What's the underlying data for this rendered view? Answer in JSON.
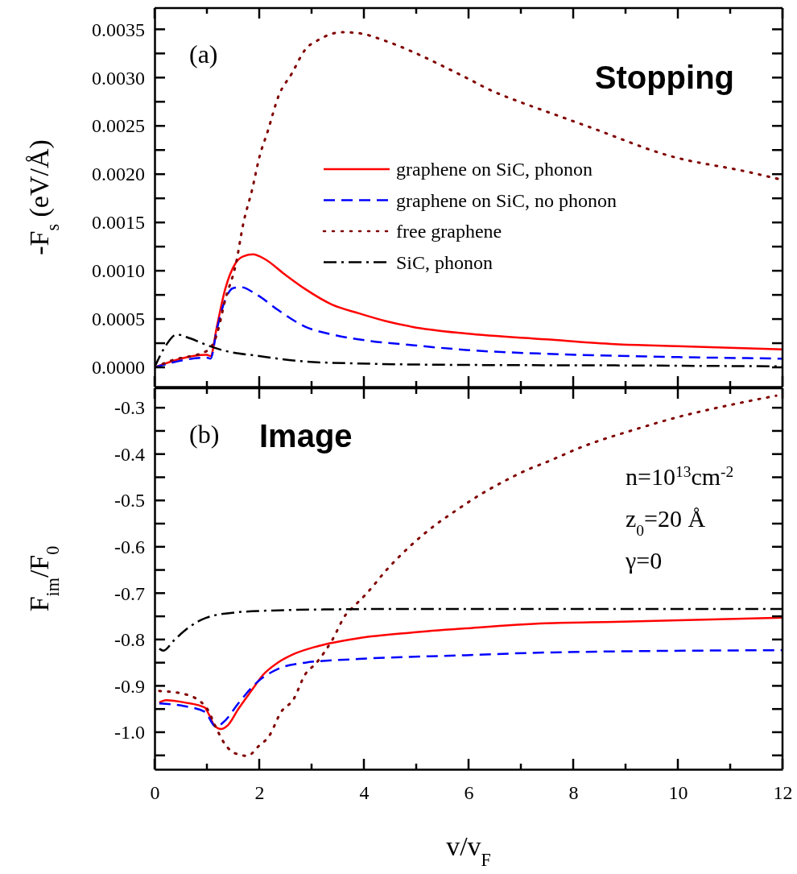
{
  "chart_data": [
    {
      "type": "line",
      "title": "Stopping",
      "ylabel": "-F$_{s}$ (eV/Å)",
      "annotations": [
        "(a)"
      ],
      "legend": "right",
      "tick_labels": "y",
      "xlim": [
        0,
        12
      ],
      "xticks": [
        0,
        {
          "value": 1,
          "label": null
        },
        2,
        {
          "value": 3,
          "label": null
        },
        4,
        {
          "value": 5,
          "label": null
        },
        6,
        {
          "value": 7,
          "label": null
        },
        8,
        {
          "value": 9,
          "label": null
        },
        10,
        {
          "value": 11,
          "label": null
        },
        12
      ],
      "ylim": [
        -0.0002,
        0.00372
      ],
      "yticks": [
        {
          "value": 0,
          "label": "0.0000"
        },
        {
          "value": 0.00025,
          "label": null
        },
        {
          "value": 0.0005,
          "label": "0.0005"
        },
        {
          "value": 0.00075,
          "label": null
        },
        {
          "value": 0.001,
          "label": "0.0010"
        },
        {
          "value": 0.00125,
          "label": null
        },
        {
          "value": 0.0015,
          "label": "0.0015"
        },
        {
          "value": 0.00175,
          "label": null
        },
        {
          "value": 0.002,
          "label": "0.0020"
        },
        {
          "value": 0.00225,
          "label": null
        },
        {
          "value": 0.0025,
          "label": "0.0025"
        },
        {
          "value": 0.00275,
          "label": null
        },
        {
          "value": 0.003,
          "label": "0.0030"
        },
        {
          "value": 0.00325,
          "label": null
        },
        {
          "value": 0.0035,
          "label": "0.0035"
        }
      ],
      "series": [
        {
          "name": "graphene on SiC, phonon",
          "color": "#ff0000",
          "line_style": "solid",
          "x": [
            0,
            1,
            1.07,
            1.19,
            1.35,
            1.55,
            1.7,
            1.88,
            2.11,
            2.47,
            2.88,
            3.39,
            3.9,
            4.41,
            4.92,
            5.95,
            7.48,
            8.8,
            10,
            12
          ],
          "values": [
            0,
            0.00013,
            0.000116,
            0.00042,
            0.00081,
            0.00108,
            0.00115,
            0.00117,
            0.00112,
            0.00097,
            0.00081,
            0.00065,
            0.00056,
            0.00048,
            0.00042,
            0.00035,
            0.00029,
            0.00024,
            0.00022,
            0.000185
          ]
        },
        {
          "name": "graphene on SiC, no phonon",
          "color": "#0000ff",
          "line_style": "dashed",
          "x": [
            0,
            1,
            1.07,
            1.19,
            1.35,
            1.5,
            1.65,
            1.96,
            2.37,
            2.88,
            3.39,
            4.16,
            4.92,
            5.95,
            7.48,
            8.8,
            12
          ],
          "values": [
            0,
            0.0001,
            9e-05,
            0.00039,
            0.0007,
            0.00082,
            0.00083,
            0.00075,
            0.00059,
            0.00042,
            0.00034,
            0.00027,
            0.00023,
            0.00018,
            0.00014,
            0.00012,
            9e-05
          ]
        },
        {
          "name": "free graphene",
          "color": "#800000",
          "line_style": "dotted",
          "x": [
            0,
            0.32,
            1,
            1.19,
            1.35,
            1.55,
            1.7,
            1.86,
            2.01,
            2.16,
            2.37,
            2.62,
            2.88,
            3.13,
            3.59,
            3.9,
            4.41,
            4.92,
            5.43,
            5.95,
            6.46,
            6.97,
            7.43,
            8.3,
            9.84,
            11.37,
            12
          ],
          "values": [
            0,
            7e-05,
            0.00017,
            0.00034,
            0.0007,
            0.00106,
            0.0015,
            0.00183,
            0.00219,
            0.00244,
            0.00281,
            0.00304,
            0.00329,
            0.00339,
            0.00347,
            0.00346,
            0.00338,
            0.00327,
            0.00314,
            0.003,
            0.00286,
            0.00275,
            0.00266,
            0.00249,
            0.00219,
            0.00202,
            0.00194
          ]
        },
        {
          "name": "SiC, phonon",
          "color": "#000000",
          "line_style": "dashdot",
          "x": [
            0,
            0.22,
            0.42,
            0.68,
            1,
            1.35,
            1.96,
            2.88,
            3.9,
            5.95,
            8.8,
            12
          ],
          "values": [
            0,
            0.00023,
            0.00034,
            0.0003,
            0.00023,
            0.00017,
            0.00012,
            6e-05,
            4e-05,
            2.5e-05,
            2e-05,
            1e-05
          ]
        }
      ]
    },
    {
      "type": "line",
      "title": "Image",
      "xlabel": "v/v$_{F}$",
      "ylabel": "F$_{im}$/F$_{0}$",
      "annotations": [
        "(b)",
        "n=10$^{13}$cm$^{-2}$",
        "z$_{0}$=20 Å",
        "γ=0"
      ],
      "xlim": [
        0,
        12
      ],
      "xticks": [
        0,
        {
          "value": 1,
          "label": null
        },
        2,
        {
          "value": 3,
          "label": null
        },
        4,
        {
          "value": 5,
          "label": null
        },
        6,
        {
          "value": 7,
          "label": null
        },
        8,
        {
          "value": 9,
          "label": null
        },
        10,
        {
          "value": 11,
          "label": null
        },
        12
      ],
      "ylim": [
        -1.08,
        -0.258
      ],
      "yticks": [
        {
          "value": -0.3,
          "label": "-0.3"
        },
        {
          "value": -0.35,
          "label": null
        },
        {
          "value": -0.4,
          "label": "-0.4"
        },
        {
          "value": -0.45,
          "label": null
        },
        {
          "value": -0.5,
          "label": "-0.5"
        },
        {
          "value": -0.55,
          "label": null
        },
        {
          "value": -0.6,
          "label": "-0.6"
        },
        {
          "value": -0.65,
          "label": null
        },
        {
          "value": -0.7,
          "label": "-0.7"
        },
        {
          "value": -0.75,
          "label": null
        },
        {
          "value": -0.8,
          "label": "-0.8"
        },
        {
          "value": -0.85,
          "label": null
        },
        {
          "value": -0.9,
          "label": "-0.9"
        },
        {
          "value": -0.95,
          "label": null
        },
        {
          "value": -1.0,
          "label": "-1.0"
        },
        {
          "value": -1.05,
          "label": null
        }
      ],
      "series": [
        {
          "color": "#ff0000",
          "line_style": "solid",
          "x": [
            0.09,
            0.22,
            0.58,
            0.96,
            1.04,
            1.14,
            1.27,
            1.4,
            1.6,
            1.86,
            2.06,
            2.37,
            2.67,
            3.13,
            3.9,
            4.92,
            5.95,
            7.48,
            8.8,
            12
          ],
          "values": [
            -0.936,
            -0.931,
            -0.936,
            -0.947,
            -0.962,
            -0.985,
            -0.993,
            -0.985,
            -0.95,
            -0.909,
            -0.878,
            -0.849,
            -0.831,
            -0.814,
            -0.797,
            -0.785,
            -0.776,
            -0.765,
            -0.762,
            -0.753
          ]
        },
        {
          "color": "#0000ff",
          "line_style": "dashed",
          "x": [
            0.09,
            0.58,
            0.96,
            1.17,
            1.34,
            1.6,
            1.96,
            2.37,
            2.88,
            3.9,
            5.95,
            7.48,
            12
          ],
          "values": [
            -0.938,
            -0.944,
            -0.956,
            -0.988,
            -0.976,
            -0.938,
            -0.892,
            -0.863,
            -0.85,
            -0.842,
            -0.834,
            -0.828,
            -0.823
          ]
        },
        {
          "color": "#800000",
          "line_style": "dotted",
          "x": [
            0.09,
            0.58,
            0.99,
            1.19,
            1.34,
            1.55,
            1.78,
            1.98,
            2.19,
            2.42,
            2.65,
            2.88,
            3.08,
            3.39,
            3.65,
            3.85,
            4.05,
            4.44,
            4.87,
            5.33,
            5.77,
            6.23,
            6.69,
            7.12,
            7.43,
            8.25,
            9.15,
            10.04,
            10.96,
            11.88
          ],
          "values": [
            -0.911,
            -0.918,
            -0.947,
            -0.994,
            -1.025,
            -1.046,
            -1.051,
            -1.031,
            -1.008,
            -0.956,
            -0.93,
            -0.875,
            -0.852,
            -0.802,
            -0.747,
            -0.724,
            -0.701,
            -0.649,
            -0.6,
            -0.556,
            -0.521,
            -0.487,
            -0.458,
            -0.434,
            -0.42,
            -0.381,
            -0.348,
            -0.319,
            -0.295,
            -0.274
          ]
        },
        {
          "color": "#000000",
          "line_style": "dashdot",
          "x": [
            0.09,
            0.17,
            0.37,
            0.63,
            0.99,
            1.6,
            2.37,
            3.39,
            4.92,
            12
          ],
          "values": [
            -0.82,
            -0.824,
            -0.802,
            -0.776,
            -0.753,
            -0.741,
            -0.737,
            -0.735,
            -0.734,
            -0.734
          ]
        }
      ]
    }
  ]
}
